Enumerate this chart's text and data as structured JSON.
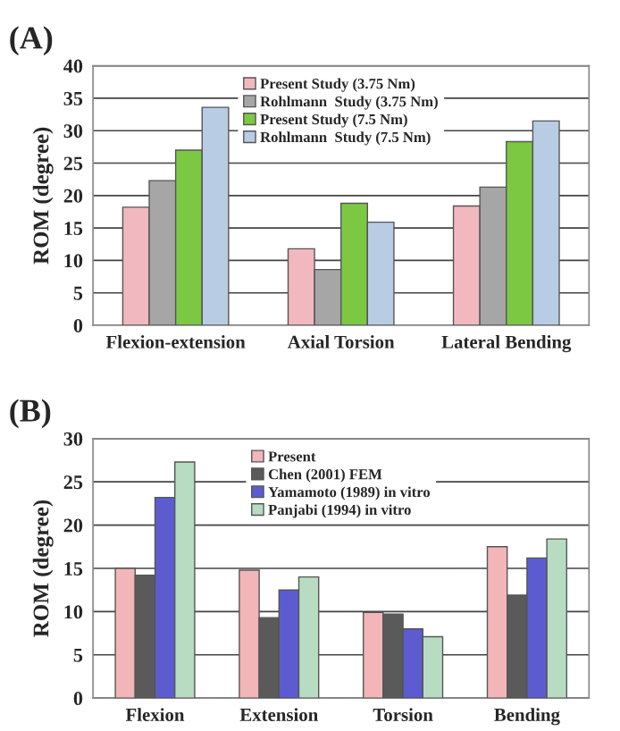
{
  "chart_data": [
    {
      "type": "bar",
      "title": "(A)",
      "ylabel": "ROM (degree)",
      "categories": [
        "Flexion-extension",
        "Axial Torsion",
        "Lateral Bending"
      ],
      "series": [
        {
          "name": "Present Study (3.75 Nm)",
          "color": "#f2b8bf",
          "values": [
            18.2,
            11.8,
            18.4
          ]
        },
        {
          "name": "Rohlmann  Study (3.75 Nm)",
          "color": "#a6a6a6",
          "values": [
            22.3,
            8.6,
            21.3
          ]
        },
        {
          "name": "Present Study (7.5 Nm)",
          "color": "#7cc843",
          "values": [
            27.0,
            18.8,
            28.3
          ]
        },
        {
          "name": "Rohlmann  Study (7.5 Nm)",
          "color": "#b8cce4",
          "values": [
            33.6,
            15.9,
            31.5
          ]
        }
      ],
      "ylim": [
        0,
        40
      ],
      "yticks": [
        0,
        5,
        10,
        15,
        20,
        25,
        30,
        35,
        40
      ],
      "grid": "y",
      "legend": "top"
    },
    {
      "type": "bar",
      "title": "(B)",
      "ylabel": "ROM (degree)",
      "categories": [
        "Flexion",
        "Extension",
        "Torsion",
        "Bending"
      ],
      "series": [
        {
          "name": "Present",
          "color": "#f2b5b8",
          "values": [
            15.0,
            14.8,
            9.9,
            17.5
          ]
        },
        {
          "name": "Chen (2001) FEM",
          "color": "#5a5a5a",
          "values": [
            14.2,
            9.3,
            9.7,
            11.9
          ]
        },
        {
          "name": "Yamamoto (1989) in vitro",
          "color": "#5c5cd0",
          "values": [
            23.2,
            12.5,
            8.0,
            16.2
          ]
        },
        {
          "name": "Panjabi (1994) in vitro",
          "color": "#b8dcc2",
          "values": [
            27.3,
            14.0,
            7.1,
            18.4
          ]
        }
      ],
      "ylim": [
        0,
        30
      ],
      "yticks": [
        0,
        5,
        10,
        15,
        20,
        25,
        30
      ],
      "grid": "y",
      "legend": "top"
    }
  ]
}
